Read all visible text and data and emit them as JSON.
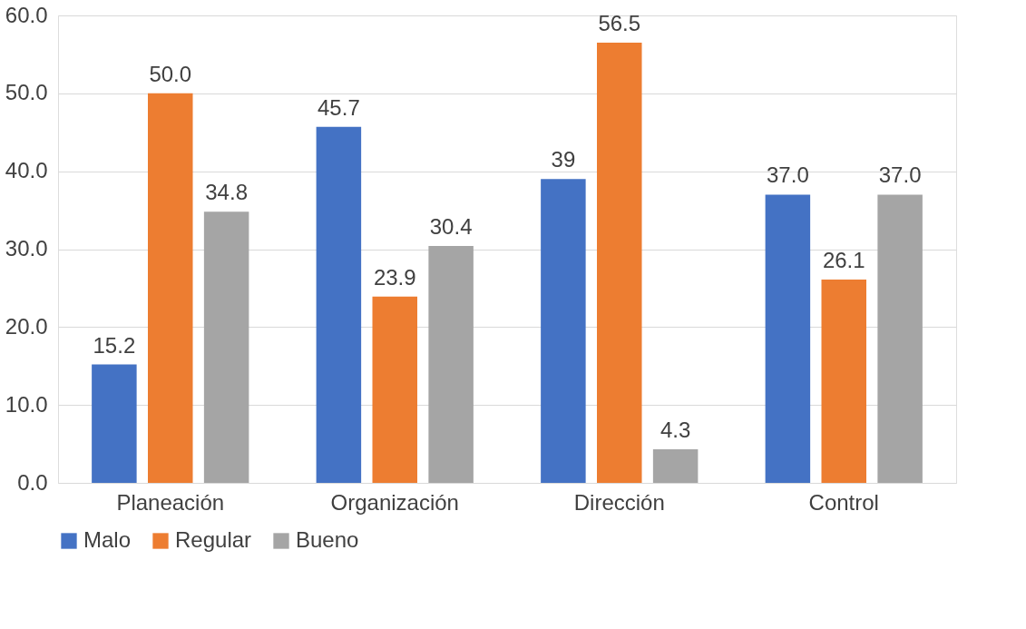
{
  "chart_data": {
    "type": "bar",
    "categories": [
      "Planeación",
      "Organización",
      "Dirección",
      "Control"
    ],
    "series": [
      {
        "name": "Malo",
        "color": "#4472c4",
        "values": [
          15.2,
          45.7,
          39,
          37.0
        ],
        "value_labels": [
          "15.2",
          "45.7",
          "39",
          "37.0"
        ]
      },
      {
        "name": "Regular",
        "color": "#ed7d31",
        "values": [
          50.0,
          23.9,
          56.5,
          26.1
        ],
        "value_labels": [
          "50.0",
          "23.9",
          "56.5",
          "26.1"
        ]
      },
      {
        "name": "Bueno",
        "color": "#a5a5a5",
        "values": [
          34.8,
          30.4,
          4.3,
          37.0
        ],
        "value_labels": [
          "34.8",
          "30.4",
          "4.3",
          "37.0"
        ]
      }
    ],
    "ylim": [
      0,
      60
    ],
    "yticks": [
      {
        "value": 0,
        "label": "0.0"
      },
      {
        "value": 10,
        "label": "10.0"
      },
      {
        "value": 20,
        "label": "20.0"
      },
      {
        "value": 30,
        "label": "30.0"
      },
      {
        "value": 40,
        "label": "40.0"
      },
      {
        "value": 50,
        "label": "50.0"
      },
      {
        "value": 60,
        "label": "60.0"
      }
    ],
    "grid": "y",
    "legend": "bottom"
  }
}
